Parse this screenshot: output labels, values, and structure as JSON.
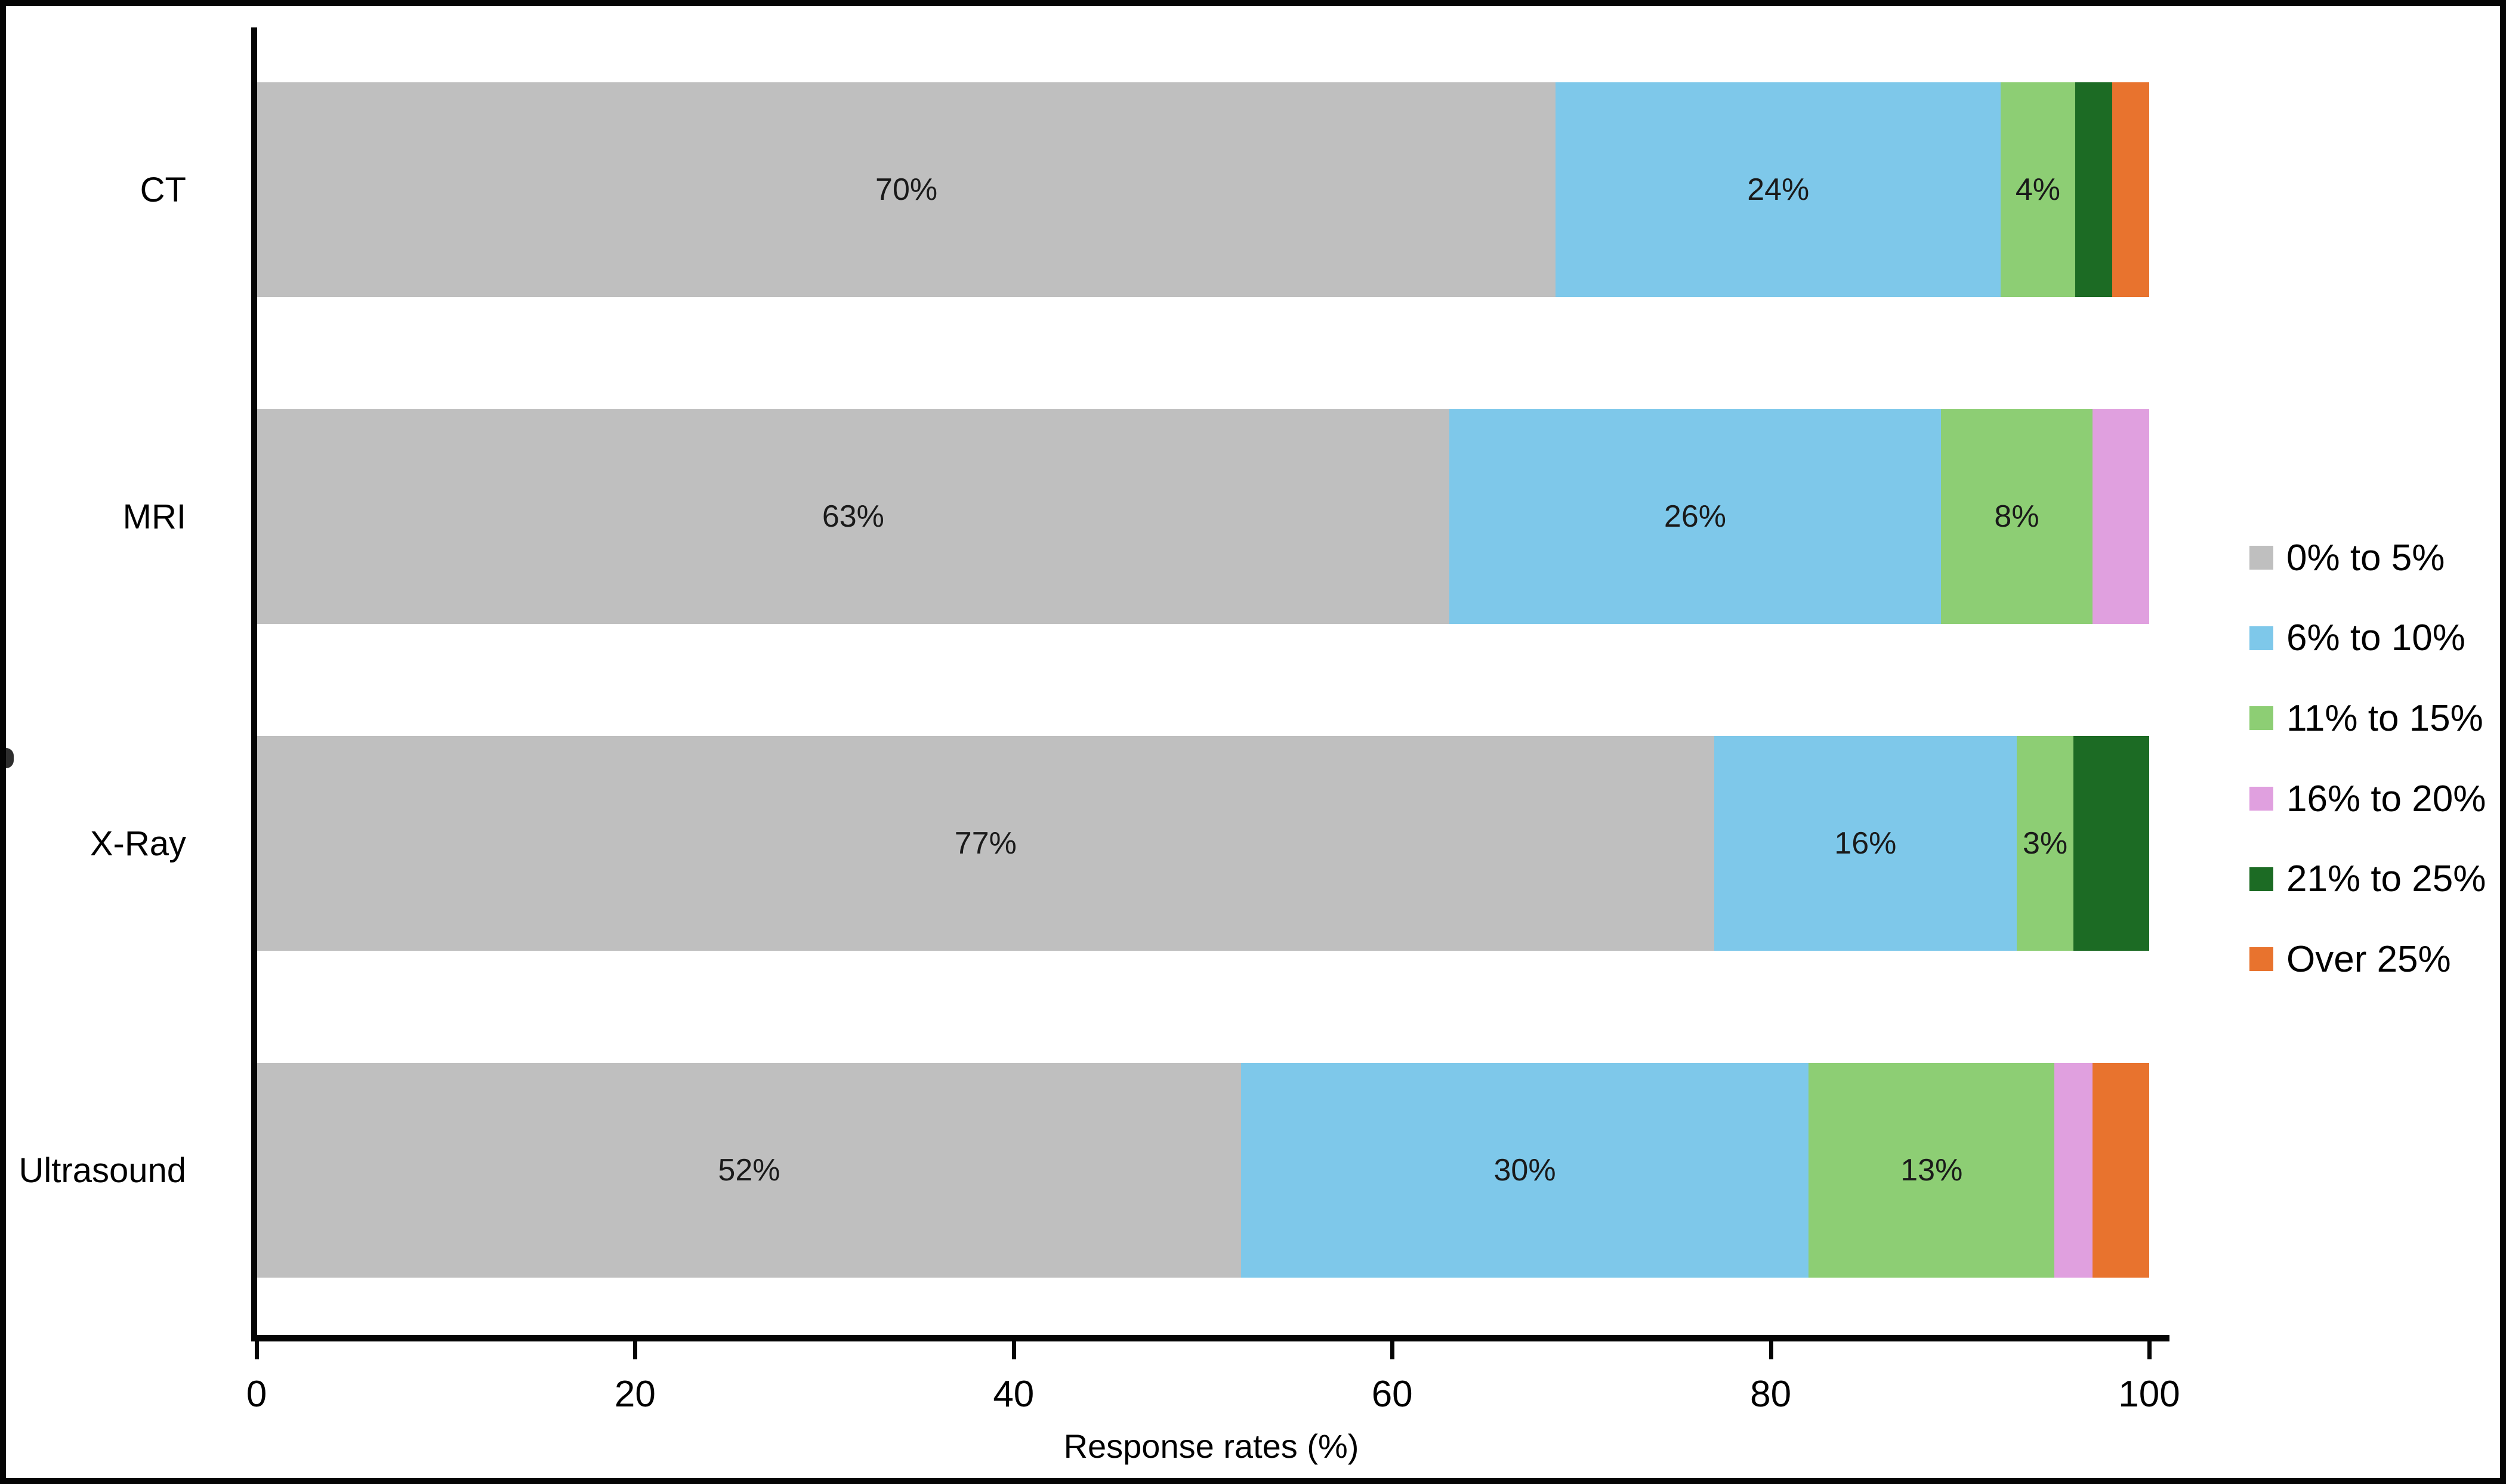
{
  "chart_data": {
    "type": "bar",
    "orientation": "horizontal",
    "stacked": true,
    "percent_stacked": true,
    "title": "",
    "xlabel": "Response rates (%)",
    "ylabel": "",
    "xlim": [
      0,
      100
    ],
    "x_ticks": [
      "0",
      "20",
      "40",
      "60",
      "80",
      "100"
    ],
    "grid": false,
    "legend_position": "right",
    "categories": [
      "CT",
      "MRI",
      "X-Ray",
      "Ultrasound"
    ],
    "series": [
      {
        "name": "0% to 5%",
        "color": "#bfbfbf",
        "values": [
          70,
          63,
          77,
          52
        ],
        "data_labels": [
          "70%",
          "63%",
          "77%",
          "52%"
        ]
      },
      {
        "name": "6% to 10%",
        "color": "#7ec8ea",
        "values": [
          24,
          26,
          16,
          30
        ],
        "data_labels": [
          "24%",
          "26%",
          "16%",
          "30%"
        ]
      },
      {
        "name": "11% to 15%",
        "color": "#8dce74",
        "values": [
          4,
          8,
          3,
          13
        ],
        "data_labels": [
          "4%",
          "8%",
          "3%",
          "13%"
        ]
      },
      {
        "name": "16% to 20%",
        "color": "#e0a0df",
        "values": [
          0,
          3,
          0,
          2
        ],
        "data_labels": [
          "",
          "",
          "",
          ""
        ]
      },
      {
        "name": "21% to 25%",
        "color": "#1c6b24",
        "values": [
          2,
          0,
          4,
          0
        ],
        "data_labels": [
          "",
          "",
          "",
          ""
        ]
      },
      {
        "name": "Over 25%",
        "color": "#e8732e",
        "values": [
          2,
          0,
          0,
          3
        ],
        "data_labels": [
          "",
          "",
          "",
          ""
        ]
      }
    ]
  },
  "x_axis": {
    "title": "Response rates (%)",
    "tick_labels": [
      "0",
      "20",
      "40",
      "60",
      "80",
      "100"
    ]
  },
  "legend": {
    "items": [
      {
        "label": "0% to 5%",
        "color": "#bfbfbf"
      },
      {
        "label": "6% to 10%",
        "color": "#7ec8ea"
      },
      {
        "label": "11% to 15%",
        "color": "#8dce74"
      },
      {
        "label": "16% to 20%",
        "color": "#e0a0df"
      },
      {
        "label": "21% to 25%",
        "color": "#1c6b24"
      },
      {
        "label": "Over 25%",
        "color": "#e8732e"
      }
    ]
  }
}
